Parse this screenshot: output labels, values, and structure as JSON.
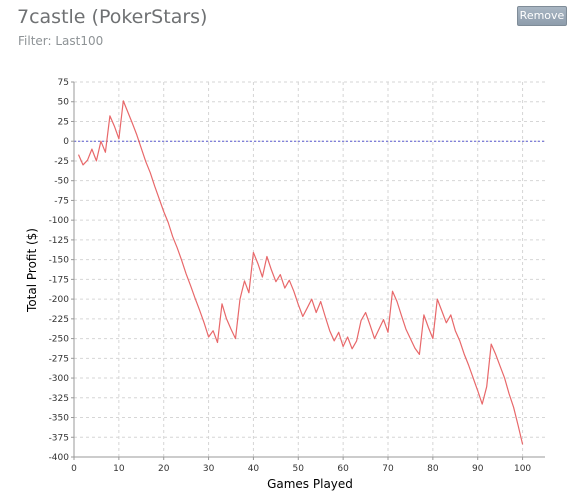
{
  "header": {
    "title": "7castle (PokerStars)",
    "filter": "Filter: Last100",
    "remove_label": "Remove"
  },
  "chart_data": {
    "type": "line",
    "xlabel": "Games Played",
    "ylabel": "Total Profit ($)",
    "xlim": [
      0,
      105
    ],
    "ylim": [
      -400,
      75
    ],
    "xticks": [
      0,
      10,
      20,
      30,
      40,
      50,
      60,
      70,
      80,
      90,
      100
    ],
    "yticks": [
      75,
      50,
      25,
      0,
      -25,
      -50,
      -75,
      -100,
      -125,
      -150,
      -175,
      -200,
      -225,
      -250,
      -275,
      -300,
      -325,
      -350,
      -375,
      -400
    ],
    "grid": true,
    "line_color": "#e8686a",
    "zero_line_color": "#5a5ad2",
    "series": [
      {
        "x": [
          1,
          2,
          3,
          4,
          5,
          6,
          7,
          8,
          9,
          10,
          11,
          12,
          13,
          14,
          15,
          16,
          17,
          18,
          19,
          20,
          21,
          22,
          23,
          24,
          25,
          26,
          27,
          28,
          29,
          30,
          31,
          32,
          33,
          34,
          35,
          36,
          37,
          38,
          39,
          40,
          41,
          42,
          43,
          44,
          45,
          46,
          47,
          48,
          49,
          50,
          51,
          52,
          53,
          54,
          55,
          56,
          57,
          58,
          59,
          60,
          61,
          62,
          63,
          64,
          65,
          66,
          67,
          68,
          69,
          70,
          71,
          72,
          73,
          74,
          75,
          76,
          77,
          78,
          79,
          80,
          81,
          82,
          83,
          84,
          85,
          86,
          87,
          88,
          89,
          90,
          91,
          92,
          93,
          94,
          95,
          96,
          97,
          98,
          99,
          100
        ],
        "values": [
          -17,
          -30,
          -24,
          -10,
          -25,
          0,
          -14,
          32,
          19,
          3,
          51,
          37,
          23,
          8,
          -9,
          -26,
          -40,
          -57,
          -73,
          -89,
          -103,
          -121,
          -135,
          -151,
          -168,
          -183,
          -199,
          -214,
          -230,
          -248,
          -240,
          -255,
          -206,
          -225,
          -238,
          -250,
          -200,
          -177,
          -192,
          -141,
          -155,
          -172,
          -146,
          -163,
          -178,
          -169,
          -186,
          -176,
          -190,
          -207,
          -222,
          -211,
          -200,
          -217,
          -203,
          -222,
          -240,
          -253,
          -242,
          -260,
          -248,
          -263,
          -253,
          -227,
          -217,
          -233,
          -250,
          -238,
          -226,
          -242,
          -190,
          -203,
          -221,
          -238,
          -250,
          -262,
          -270,
          -220,
          -236,
          -250,
          -200,
          -215,
          -230,
          -220,
          -240,
          -253,
          -270,
          -284,
          -300,
          -316,
          -333,
          -311,
          -257,
          -270,
          -285,
          -300,
          -320,
          -337,
          -360,
          -384
        ]
      }
    ]
  }
}
